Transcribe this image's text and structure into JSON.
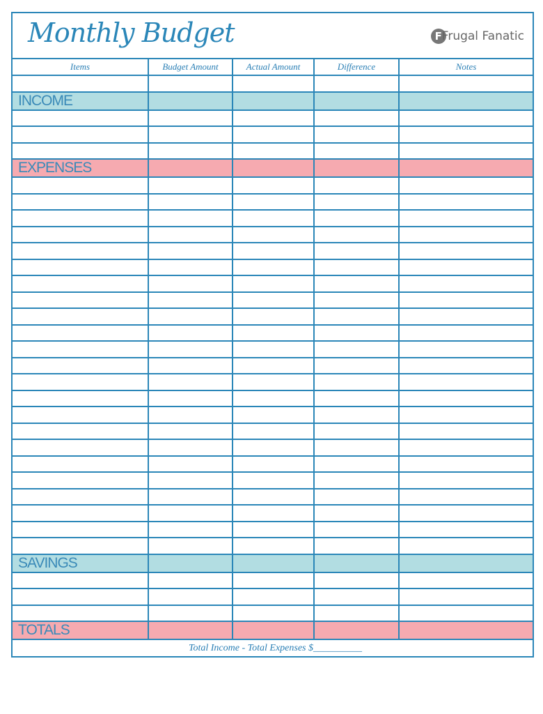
{
  "title": "Monthly Budget",
  "brand": {
    "initial": "F",
    "name": "Frugal Fanatic"
  },
  "columns": [
    "Items",
    "Budget Amount",
    "Actual Amount",
    "Difference",
    "Notes"
  ],
  "sections": {
    "income": "INCOME",
    "expenses": "EXPENSES",
    "savings": "SAVINGS",
    "totals": "TOTALS"
  },
  "footer": "Total Income  -  Total Expenses   $__________",
  "colors": {
    "border": "#2a86b8",
    "income_savings": "#b2dde2",
    "expenses_totals": "#f6aab0",
    "text": "#2a7fb5"
  }
}
